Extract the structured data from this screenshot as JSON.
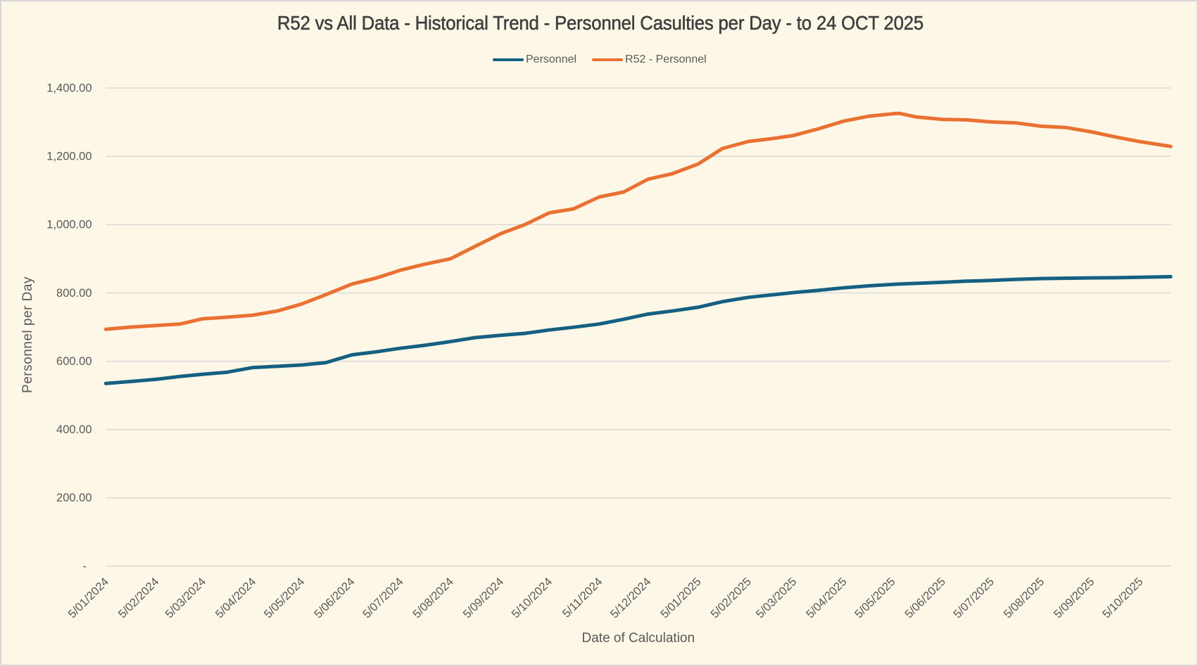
{
  "chart_data": {
    "type": "line",
    "title": "R52 vs All Data - Historical Trend - Personnel Casulties per Day - to 24 OCT 2025",
    "xlabel": "Date of Calculation",
    "ylabel": "Personnel per Day",
    "ylim": [
      0,
      1400
    ],
    "grid": true,
    "legend_position": "top",
    "background_color": "#FDF7E7",
    "gridline_color": "#D9D9D9",
    "text_color": "#595959",
    "x": [
      "5/01/2024",
      "20/01/2024",
      "5/02/2024",
      "20/02/2024",
      "5/03/2024",
      "20/03/2024",
      "5/04/2024",
      "20/04/2024",
      "5/05/2024",
      "20/05/2024",
      "5/06/2024",
      "20/06/2024",
      "5/07/2024",
      "20/07/2024",
      "5/08/2024",
      "20/08/2024",
      "5/09/2024",
      "20/09/2024",
      "5/10/2024",
      "20/10/2024",
      "5/11/2024",
      "20/11/2024",
      "5/12/2024",
      "20/12/2024",
      "5/01/2025",
      "20/01/2025",
      "5/02/2025",
      "20/02/2025",
      "5/03/2025",
      "20/03/2025",
      "5/04/2025",
      "20/04/2025",
      "5/05/2025",
      "9/05/2025",
      "20/05/2025",
      "5/06/2025",
      "20/06/2025",
      "5/07/2025",
      "20/07/2025",
      "5/08/2025",
      "20/08/2025",
      "5/09/2025",
      "20/09/2025",
      "5/10/2025",
      "24/10/2025"
    ],
    "series": [
      {
        "name": "Personnel",
        "color": "#156082",
        "values": [
          535,
          540.5,
          547,
          555.5,
          562,
          568,
          581.5,
          585,
          589,
          596,
          618.5,
          627.5,
          638,
          646.5,
          657.5,
          669,
          676,
          681.5,
          691.5,
          699.5,
          709,
          723,
          738,
          747,
          758,
          774.5,
          787,
          794.5,
          801,
          807.5,
          815,
          820.5,
          825,
          826,
          828,
          831,
          834.5,
          836.5,
          839.5,
          842,
          843,
          844,
          844.5,
          846,
          847.5
        ]
      },
      {
        "name": "R52 - Personnel",
        "color": "#E97132",
        "values": [
          693.5,
          700,
          704.5,
          709,
          724.5,
          729,
          735,
          747,
          767.5,
          795,
          826,
          843.5,
          866.5,
          884,
          900,
          936,
          973.5,
          1000,
          1034.5,
          1046,
          1081,
          1095.5,
          1133,
          1149,
          1177.5,
          1223,
          1243.5,
          1252,
          1261,
          1280,
          1303,
          1317,
          1324.5,
          1326,
          1315,
          1308,
          1306.5,
          1300.5,
          1298,
          1288,
          1284.5,
          1271.5,
          1256.5,
          1243,
          1229
        ]
      }
    ],
    "x_tick_labels": [
      "5/01/2024",
      "5/02/2024",
      "5/03/2024",
      "5/04/2024",
      "5/05/2024",
      "5/06/2024",
      "5/07/2024",
      "5/08/2024",
      "5/09/2024",
      "5/10/2024",
      "5/11/2024",
      "5/12/2024",
      "5/01/2025",
      "5/02/2025",
      "5/03/2025",
      "5/04/2025",
      "5/05/2025",
      "5/06/2025",
      "5/07/2025",
      "5/08/2025",
      "5/09/2025",
      "5/10/2025"
    ],
    "y_ticks": [
      {
        "value": 0,
        "label": "-"
      },
      {
        "value": 200,
        "label": "200.00"
      },
      {
        "value": 400,
        "label": "400.00"
      },
      {
        "value": 600,
        "label": "600.00"
      },
      {
        "value": 800,
        "label": "800.00"
      },
      {
        "value": 1000,
        "label": "1,000.00"
      },
      {
        "value": 1200,
        "label": "1,200.00"
      },
      {
        "value": 1400,
        "label": "1,400.00"
      }
    ]
  }
}
